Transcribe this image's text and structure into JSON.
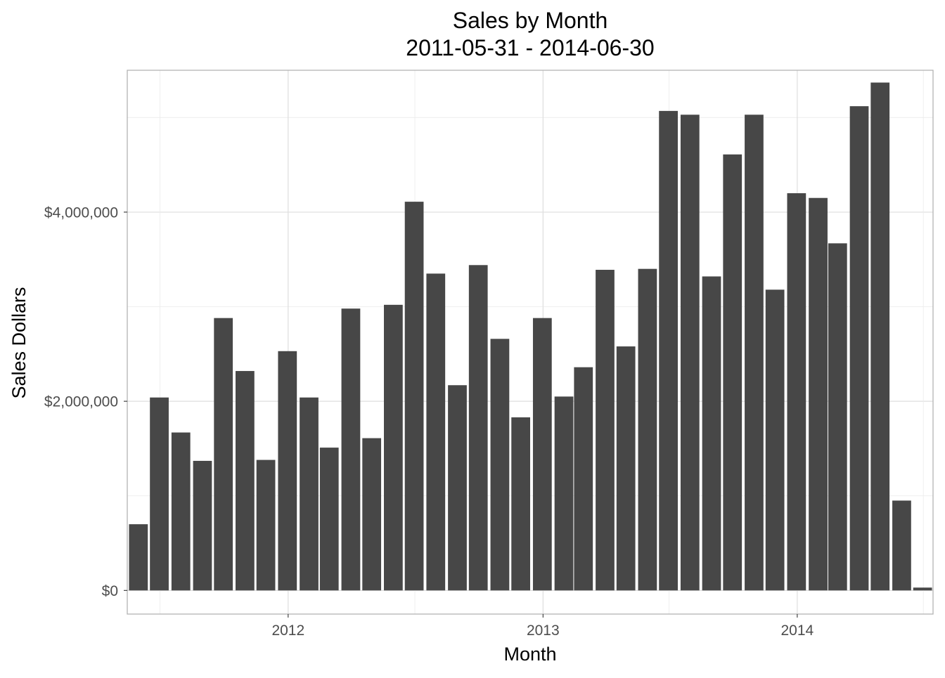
{
  "chart_data": {
    "type": "bar",
    "title": "Sales by Month",
    "subtitle": "2011-05-31 - 2014-06-30",
    "xlabel": "Month",
    "ylabel": "Sales Dollars",
    "x_ticks": [
      "2012",
      "2013",
      "2014"
    ],
    "y_ticks": [
      "$0",
      "$2,000,000",
      "$4,000,000"
    ],
    "y_tick_values": [
      0,
      2000000,
      4000000
    ],
    "ylim": [
      -250000,
      5500000
    ],
    "xlim": [
      "2011-05-15",
      "2014-07-15"
    ],
    "grid": true,
    "legend": "none",
    "bar_color": "#474747",
    "categories": [
      "2011-05-31",
      "2011-06-30",
      "2011-07-31",
      "2011-08-31",
      "2011-09-30",
      "2011-10-31",
      "2011-11-30",
      "2011-12-31",
      "2012-01-31",
      "2012-02-29",
      "2012-03-31",
      "2012-04-30",
      "2012-05-31",
      "2012-06-30",
      "2012-07-31",
      "2012-08-31",
      "2012-09-30",
      "2012-10-31",
      "2012-11-30",
      "2012-12-31",
      "2013-01-31",
      "2013-02-28",
      "2013-03-31",
      "2013-04-30",
      "2013-05-31",
      "2013-06-30",
      "2013-07-31",
      "2013-08-31",
      "2013-09-30",
      "2013-10-31",
      "2013-11-30",
      "2013-12-31",
      "2014-01-31",
      "2014-02-28",
      "2014-03-31",
      "2014-04-30",
      "2014-05-31",
      "2014-06-30"
    ],
    "values": [
      700000,
      2040000,
      1670000,
      1370000,
      2880000,
      2320000,
      1380000,
      2530000,
      2040000,
      1510000,
      2980000,
      1610000,
      3020000,
      4110000,
      3350000,
      2170000,
      3440000,
      2660000,
      1830000,
      2880000,
      2050000,
      2360000,
      3390000,
      2580000,
      3400000,
      5070000,
      5030000,
      3320000,
      4610000,
      5030000,
      3180000,
      4200000,
      4150000,
      3670000,
      5120000,
      5370000,
      950000,
      30000
    ]
  }
}
